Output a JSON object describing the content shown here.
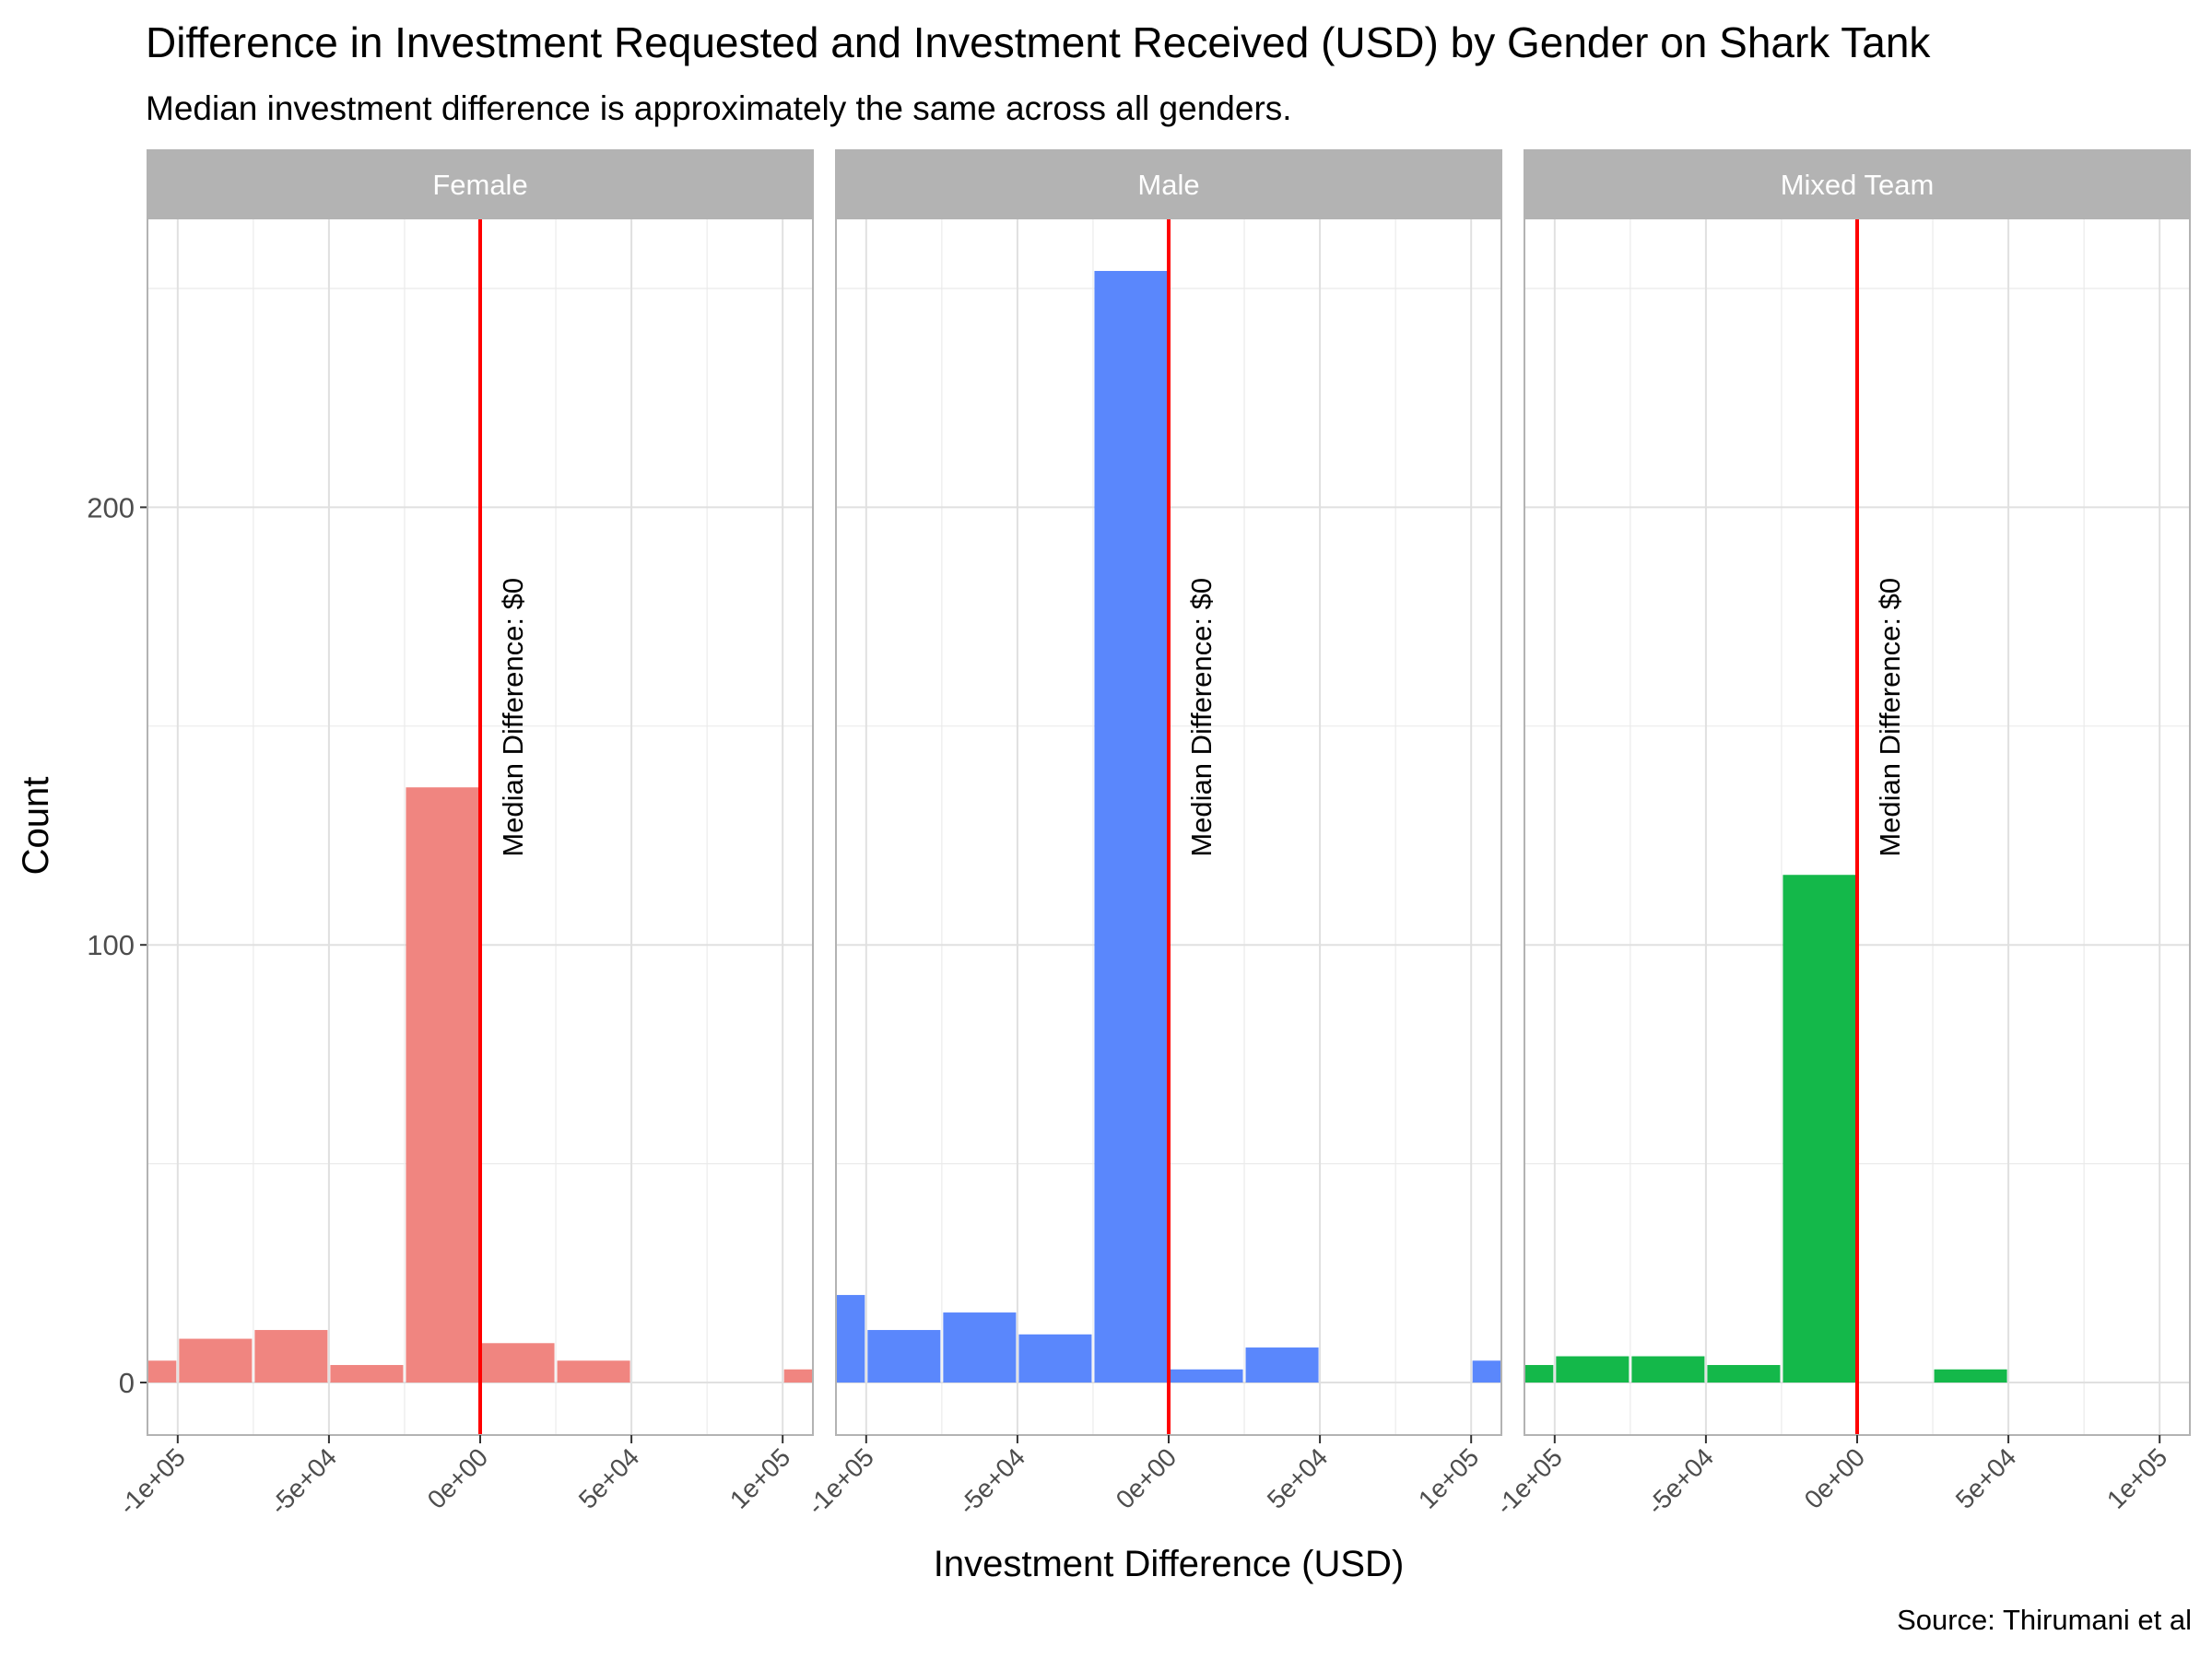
{
  "chart_data": {
    "type": "bar",
    "title": "Difference in Investment Requested and Investment Received (USD) by Gender on Shark Tank",
    "subtitle": "Median investment difference is approximately the same across all genders.",
    "caption": "Source: Thirumani et al",
    "xlabel": "Investment Difference (USD)",
    "ylabel": "Count",
    "xlim": [
      -110000,
      110000
    ],
    "ylim": [
      -12,
      266
    ],
    "x_ticks": [
      -100000,
      -50000,
      0,
      50000,
      100000
    ],
    "x_tick_labels": [
      "-1e+05",
      "-5e+04",
      "0e+00",
      "5e+04",
      "1e+05"
    ],
    "y_ticks": [
      0,
      100,
      200
    ],
    "y_tick_labels": [
      "0",
      "100",
      "200"
    ],
    "grid": true,
    "legend": "none",
    "bin_width": 25000,
    "bin_centers": [
      -112500,
      -87500,
      -62500,
      -37500,
      -12500,
      12500,
      37500,
      62500,
      87500,
      112500
    ],
    "median_line_color": "#ff0000",
    "strip_color": "#b3b3b3",
    "panels": [
      {
        "name": "Female",
        "color": "#f08580",
        "counts": [
          5,
          10,
          12,
          4,
          136,
          9,
          5,
          0,
          0,
          3
        ],
        "median": 0,
        "median_label": "Median Difference: $0"
      },
      {
        "name": "Male",
        "color": "#5a87fc",
        "counts": [
          20,
          12,
          16,
          11,
          254,
          3,
          8,
          0,
          0,
          5
        ],
        "median": 0,
        "median_label": "Median Difference: $0"
      },
      {
        "name": "Mixed Team",
        "color": "#14b84a",
        "counts": [
          4,
          6,
          6,
          4,
          116,
          0,
          3,
          0,
          0,
          0
        ],
        "median": 0,
        "median_label": "Median Difference: $0"
      }
    ]
  }
}
